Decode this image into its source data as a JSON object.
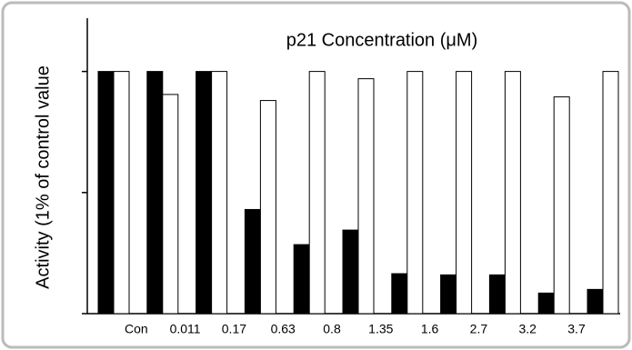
{
  "chart_data": {
    "type": "bar",
    "title": "p21 Concentration (μM)",
    "y_label": "Activity (1% of control value",
    "categories": [
      null,
      "Con",
      "0.011",
      "0.17",
      "0.63",
      "0.8",
      "1.35",
      "1.6",
      "2.7",
      "3.2",
      "3.7"
    ],
    "series": [
      {
        "color": "#000000",
        "values": [
          100,
          100,
          100,
          43,
          28.5,
          34.5,
          16.5,
          16,
          16,
          8.5,
          10
        ]
      },
      {
        "color": "#ffffff",
        "values": [
          100,
          90.5,
          100,
          88,
          100,
          97,
          100,
          100,
          100,
          89.5,
          100
        ]
      }
    ],
    "edgecolor": "#000000",
    "ylim": [
      0,
      122
    ],
    "yticks": [
      0,
      50,
      100
    ]
  }
}
